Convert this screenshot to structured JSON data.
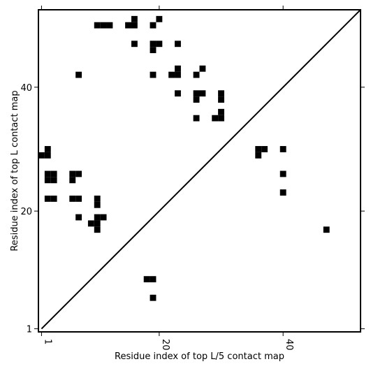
{
  "chart_data": {
    "type": "heatmap",
    "title": "",
    "xlabel": "Residue index of top L/5 contact map",
    "ylabel": "Residue index of top L contact map",
    "xlim": [
      0.5,
      52.5
    ],
    "ylim": [
      0.5,
      52.5
    ],
    "x_ticks": [
      1,
      20,
      40
    ],
    "y_ticks": [
      1,
      20,
      40
    ],
    "x_tick_labels": [
      "1",
      "20",
      "40"
    ],
    "y_tick_labels": [
      "1",
      "20",
      "40"
    ],
    "diagonal": true,
    "colors": {
      "contact": "#000000",
      "background": "#ffffff",
      "axis": "#000000"
    },
    "cells": [
      [
        1,
        29
      ],
      [
        2,
        29
      ],
      [
        2,
        30
      ],
      [
        2,
        25
      ],
      [
        3,
        25
      ],
      [
        2,
        26
      ],
      [
        3,
        26
      ],
      [
        2,
        22
      ],
      [
        3,
        22
      ],
      [
        6,
        25
      ],
      [
        6,
        26
      ],
      [
        7,
        26
      ],
      [
        6,
        22
      ],
      [
        7,
        22
      ],
      [
        7,
        19
      ],
      [
        7,
        42
      ],
      [
        10,
        21
      ],
      [
        10,
        22
      ],
      [
        9,
        18
      ],
      [
        10,
        18
      ],
      [
        10,
        19
      ],
      [
        11,
        19
      ],
      [
        10,
        17
      ],
      [
        10,
        50
      ],
      [
        11,
        50
      ],
      [
        12,
        50
      ],
      [
        15,
        50
      ],
      [
        16,
        50
      ],
      [
        16,
        51
      ],
      [
        16,
        47
      ],
      [
        18,
        9
      ],
      [
        19,
        9
      ],
      [
        19,
        6
      ],
      [
        19,
        50
      ],
      [
        20,
        51
      ],
      [
        19,
        46
      ],
      [
        19,
        47
      ],
      [
        20,
        47
      ],
      [
        19,
        42
      ],
      [
        22,
        42
      ],
      [
        23,
        42
      ],
      [
        23,
        43
      ],
      [
        23,
        47
      ],
      [
        23,
        39
      ],
      [
        26,
        42
      ],
      [
        27,
        43
      ],
      [
        26,
        38
      ],
      [
        26,
        39
      ],
      [
        27,
        39
      ],
      [
        26,
        35
      ],
      [
        29,
        35
      ],
      [
        30,
        35
      ],
      [
        30,
        36
      ],
      [
        30,
        38
      ],
      [
        30,
        39
      ],
      [
        36,
        29
      ],
      [
        36,
        30
      ],
      [
        37,
        30
      ],
      [
        40,
        30
      ],
      [
        40,
        26
      ],
      [
        40,
        23
      ],
      [
        47,
        17
      ]
    ]
  }
}
